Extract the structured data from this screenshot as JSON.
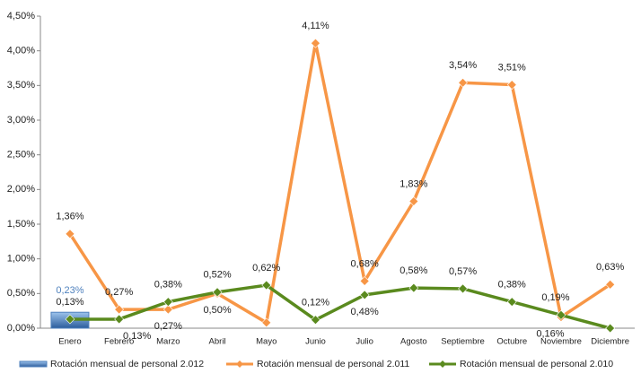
{
  "chart_data": {
    "type": "line",
    "categories": [
      "Enero",
      "Febrero",
      "Marzo",
      "Abril",
      "Mayo",
      "Junio",
      "Julio",
      "Agosto",
      "Septiembre",
      "Octubre",
      "Noviembre",
      "Diciembre"
    ],
    "ylim": [
      0,
      4.5
    ],
    "yticks": [
      {
        "value": 0,
        "label": "0,00%"
      },
      {
        "value": 0.5,
        "label": "0,50%"
      },
      {
        "value": 1,
        "label": "1,00%"
      },
      {
        "value": 1.5,
        "label": "1,50%"
      },
      {
        "value": 2,
        "label": "2,00%"
      },
      {
        "value": 2.5,
        "label": "2,50%"
      },
      {
        "value": 3,
        "label": "3,00%"
      },
      {
        "value": 3.5,
        "label": "3,50%"
      },
      {
        "value": 4,
        "label": "4,00%"
      },
      {
        "value": 4.5,
        "label": "4,50%"
      }
    ],
    "legend": "bottom",
    "series": [
      {
        "name": "Rotación mensual  de personal 2.012",
        "type": "bar",
        "color": "#4f81bd",
        "values": [
          0.23,
          null,
          null,
          null,
          null,
          null,
          null,
          null,
          null,
          null,
          null,
          null
        ],
        "value_labels": [
          "0,23%",
          null,
          null,
          null,
          null,
          null,
          null,
          null,
          null,
          null,
          null,
          null
        ]
      },
      {
        "name": "Rotación mensual  de personal 2.011",
        "type": "line",
        "color": "#f79646",
        "values": [
          1.36,
          0.27,
          0.27,
          0.5,
          0.08,
          4.11,
          0.68,
          1.83,
          3.54,
          3.51,
          0.16,
          0.63
        ],
        "value_labels": [
          "1,36%",
          "0,27%",
          "0,27%",
          "0,50%",
          null,
          "4,11%",
          "0,68%",
          "1,83%",
          "3,54%",
          "3,51%",
          "0,16%",
          "0,63%"
        ]
      },
      {
        "name": "Rotación mensual  de personal 2.010",
        "type": "line",
        "color": "#5a8a1e",
        "values": [
          0.13,
          0.13,
          0.38,
          0.52,
          0.62,
          0.12,
          0.48,
          0.58,
          0.57,
          0.38,
          0.19,
          0
        ],
        "value_labels": [
          "0,13%",
          "0,13%",
          "0,38%",
          "0,52%",
          "0,62%",
          "0,12%",
          "0,48%",
          "0,58%",
          "0,57%",
          "0,38%",
          "0,19%",
          null
        ]
      }
    ]
  }
}
